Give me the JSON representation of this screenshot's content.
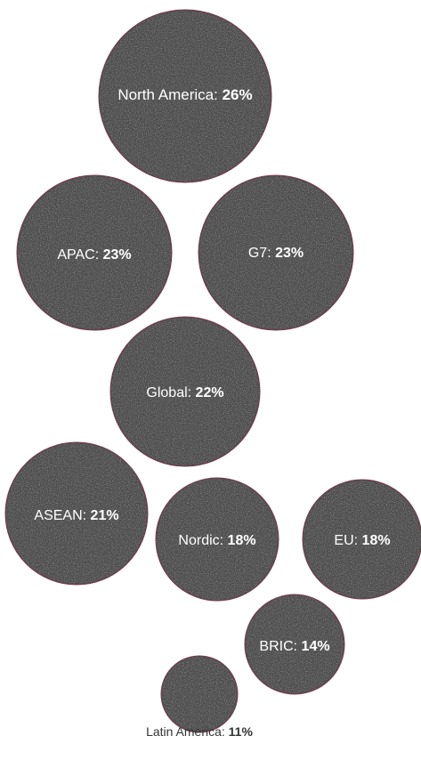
{
  "chart_data": {
    "type": "bubble",
    "title": "",
    "unit": "%",
    "series": [
      {
        "name": "North America",
        "value": 26
      },
      {
        "name": "APAC",
        "value": 23
      },
      {
        "name": "G7",
        "value": 23
      },
      {
        "name": "Global",
        "value": 22
      },
      {
        "name": "ASEAN",
        "value": 21
      },
      {
        "name": "Nordic",
        "value": 18
      },
      {
        "name": "EU",
        "value": 18
      },
      {
        "name": "BRIC",
        "value": 14
      },
      {
        "name": "Latin America",
        "value": 11
      }
    ],
    "colors": {
      "bubble_fill": "#4b4b4b",
      "bubble_texture": "#8a8a8a",
      "bubble_stroke": "#7a3b4e",
      "label_on_bubble": "#ffffff",
      "label_outside": "#333333"
    }
  }
}
